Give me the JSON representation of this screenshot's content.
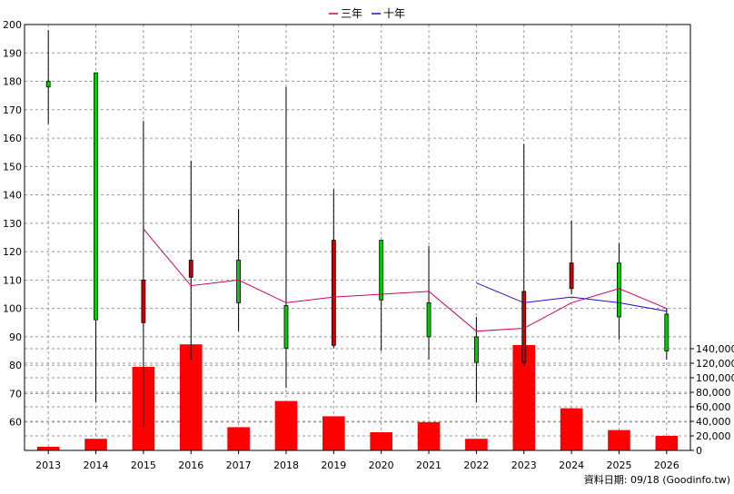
{
  "chart_data": {
    "type": "candlestick+bar",
    "legend": [
      {
        "name": "三年",
        "color": "#cc0066"
      },
      {
        "name": "十年",
        "color": "#3300cc"
      }
    ],
    "source": "資料日期: 09/18  (Goodinfo.tw)",
    "years": [
      "2013",
      "2014",
      "2015",
      "2016",
      "2017",
      "2018",
      "2019",
      "2020",
      "2021",
      "2022",
      "2023",
      "2024",
      "2025",
      "2026"
    ],
    "price_axis": {
      "min": 50,
      "max": 200,
      "ticks": [
        60,
        70,
        80,
        90,
        100,
        110,
        120,
        130,
        140,
        150,
        160,
        170,
        180,
        190,
        200
      ]
    },
    "volume_axis": {
      "min": 0,
      "max": 140000,
      "ticks": [
        0,
        20000,
        40000,
        60000,
        80000,
        100000,
        120000,
        140000
      ],
      "tick_labels": [
        "0",
        "20,000",
        "40,000",
        "60,000",
        "80,000",
        "100,000",
        "120,000",
        "140,000"
      ]
    },
    "candles": [
      {
        "open": 178,
        "close": 180,
        "high": 198,
        "low": 165
      },
      {
        "open": 96,
        "close": 183,
        "high": 183,
        "low": 67
      },
      {
        "open": 110,
        "close": 95,
        "high": 166,
        "low": 58
      },
      {
        "open": 117,
        "close": 111,
        "high": 152,
        "low": 82
      },
      {
        "open": 102,
        "close": 117,
        "high": 135,
        "low": 92
      },
      {
        "open": 86,
        "close": 101,
        "high": 178,
        "low": 72
      },
      {
        "open": 124,
        "close": 87,
        "high": 142,
        "low": 86
      },
      {
        "open": 103,
        "close": 124,
        "high": 124,
        "low": 85
      },
      {
        "open": 90,
        "close": 102,
        "high": 122,
        "low": 82
      },
      {
        "open": 81,
        "close": 90,
        "high": 97,
        "low": 67
      },
      {
        "open": 106,
        "close": 81,
        "high": 158,
        "low": 80
      },
      {
        "open": 116,
        "close": 107,
        "high": 131,
        "low": 105
      },
      {
        "open": 97,
        "close": 116,
        "high": 123,
        "low": 89
      },
      {
        "open": 85,
        "close": 98,
        "high": 100,
        "low": 82
      }
    ],
    "three_year_line": [
      null,
      null,
      128,
      108,
      110,
      102,
      104,
      105,
      106,
      92,
      93,
      102,
      107,
      100
    ],
    "ten_year_line": [
      null,
      null,
      null,
      null,
      null,
      null,
      null,
      null,
      null,
      109,
      102,
      104,
      102,
      99
    ],
    "volume": [
      5000,
      16000,
      115000,
      146000,
      32000,
      68000,
      47000,
      25000,
      39000,
      16000,
      145000,
      58000,
      28000,
      20000
    ],
    "colors": {
      "up": "#00cc00",
      "down": "#cc0000",
      "volume": "#ff0000",
      "grid": "#999999"
    }
  }
}
